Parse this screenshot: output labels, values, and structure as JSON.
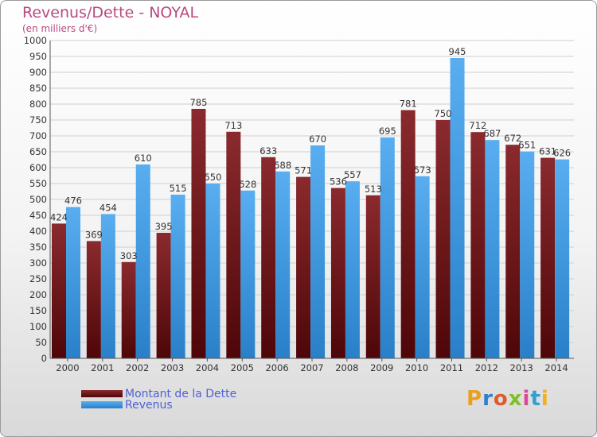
{
  "chart_data": {
    "type": "bar",
    "title": "Revenus/Dette - NOYAL",
    "subtitle": "(en milliers d'€)",
    "categories": [
      "2000",
      "2001",
      "2002",
      "2003",
      "2004",
      "2005",
      "2006",
      "2007",
      "2008",
      "2009",
      "2010",
      "2011",
      "2012",
      "2013",
      "2014"
    ],
    "series": [
      {
        "name": "Montant de la Dette",
        "color": "#6e1518",
        "values": [
          424,
          369,
          303,
          395,
          785,
          713,
          633,
          571,
          536,
          513,
          781,
          750,
          712,
          672,
          631
        ]
      },
      {
        "name": "Revenus",
        "color": "#3d9ae2",
        "values": [
          476,
          454,
          610,
          515,
          550,
          528,
          588,
          670,
          557,
          695,
          573,
          945,
          687,
          651,
          626
        ]
      }
    ],
    "ylim": [
      0,
      1000
    ],
    "ytick_step": 50,
    "grid": true,
    "legend_position": "bottom-left"
  },
  "logo": {
    "text": "Proxiti",
    "colors": [
      "#e8a020",
      "#2f7fd0",
      "#e05a2a",
      "#7fbf2a",
      "#d64a9a",
      "#2fa0d0",
      "#f0b020"
    ]
  }
}
